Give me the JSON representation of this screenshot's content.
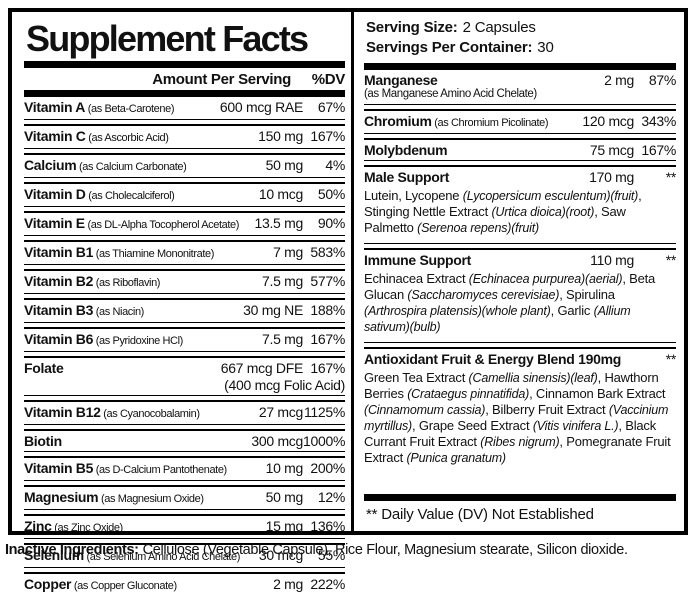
{
  "title": "Supplement Facts",
  "colors": {
    "ink": "#000000",
    "background": "#ffffff"
  },
  "serving": {
    "size_label": "Serving Size:",
    "size_value": "2 Capsules",
    "container_label": "Servings Per Container:",
    "container_value": "30"
  },
  "left_column": {
    "amount_header": "Amount Per Serving",
    "dv_header": "%DV",
    "rows": [
      {
        "name": "Vitamin A",
        "form": "(as Beta-Carotene)",
        "amount": "600 mcg RAE",
        "dv": "67%"
      },
      {
        "name": "Vitamin C",
        "form": "(as Ascorbic Acid)",
        "amount": "150 mg",
        "dv": "167%"
      },
      {
        "name": "Calcium",
        "form": "(as Calcium Carbonate)",
        "amount": "50 mg",
        "dv": "4%"
      },
      {
        "name": "Vitamin D",
        "form": "(as Cholecalciferol)",
        "amount": "10 mcg",
        "dv": "50%"
      },
      {
        "name": "Vitamin E",
        "form": "(as DL-Alpha Tocopherol Acetate)",
        "amount": "13.5 mg",
        "dv": "90%"
      },
      {
        "name": "Vitamin B1",
        "form": "(as Thiamine Mononitrate)",
        "amount": "7 mg",
        "dv": "583%"
      },
      {
        "name": "Vitamin B2",
        "form": "(as Riboflavin)",
        "amount": "7.5 mg",
        "dv": "577%"
      },
      {
        "name": "Vitamin B3",
        "form": "(as Niacin)",
        "amount": "30 mg NE",
        "dv": "188%"
      },
      {
        "name": "Vitamin B6",
        "form": "(as Pyridoxine HCl)",
        "amount": "7.5 mg",
        "dv": "167%"
      },
      {
        "name": "Folate",
        "form": "",
        "amount": "667 mcg DFE",
        "dv": "167%",
        "amount2": "(400 mcg Folic Acid)"
      },
      {
        "name": "Vitamin B12",
        "form": "(as Cyanocobalamin)",
        "amount": "27 mcg",
        "dv": "1125%"
      },
      {
        "name": "Biotin",
        "form": "",
        "amount": "300 mcg",
        "dv": "1000%"
      },
      {
        "name": "Vitamin B5",
        "form": "(as D-Calcium Pantothenate)",
        "amount": "10 mg",
        "dv": "200%"
      },
      {
        "name": "Magnesium",
        "form": "(as Magnesium Oxide)",
        "amount": "50 mg",
        "dv": "12%"
      },
      {
        "name": "Zinc",
        "form": "(as Zinc Oxide)",
        "amount": "15 mg",
        "dv": "136%"
      },
      {
        "name": "Selenium",
        "form": "(as Selenium Amino Acid Chelate)",
        "amount": "30 mcg",
        "dv": "55%"
      },
      {
        "name": "Copper",
        "form": "(as Copper Gluconate)",
        "amount": "2 mg",
        "dv": "222%"
      }
    ]
  },
  "right_column": {
    "rows": [
      {
        "type": "nutrient",
        "name": "Manganese",
        "form": "(as Manganese Amino Acid Chelate)",
        "form_below": true,
        "amount": "2 mg",
        "dv": "87%"
      },
      {
        "type": "nutrient",
        "name": "Chromium",
        "form": "(as Chromium Picolinate)",
        "amount": "120 mcg",
        "dv": "343%"
      },
      {
        "type": "nutrient",
        "name": "Molybdenum",
        "form": "",
        "amount": "75 mcg",
        "dv": "167%"
      },
      {
        "type": "section",
        "name": "Male Support",
        "amount": "170 mg",
        "dv": "**",
        "description": [
          {
            "text": "Lutein, Lycopene ",
            "italic": false
          },
          {
            "text": "(Lycopersicum esculentum)(fruit)",
            "italic": true
          },
          {
            "text": ", Stinging Nettle Extract ",
            "italic": false
          },
          {
            "text": "(Urtica dioica)(root)",
            "italic": true
          },
          {
            "text": ", Saw Palmetto ",
            "italic": false
          },
          {
            "text": "(Serenoa repens)(fruit)",
            "italic": true
          }
        ]
      },
      {
        "type": "section",
        "name": "Immune Support",
        "amount": "110 mg",
        "dv": "**",
        "description": [
          {
            "text": "Echinacea Extract ",
            "italic": false
          },
          {
            "text": "(Echinacea purpurea)(aerial)",
            "italic": true
          },
          {
            "text": ", Beta Glucan ",
            "italic": false
          },
          {
            "text": "(Saccharomyces cerevisiae)",
            "italic": true
          },
          {
            "text": ", Spirulina ",
            "italic": false
          },
          {
            "text": "(Arthrospira platensis)(whole plant)",
            "italic": true
          },
          {
            "text": ", Garlic ",
            "italic": false
          },
          {
            "text": "(Allium sativum)(bulb)",
            "italic": true
          }
        ]
      },
      {
        "type": "section",
        "name": "Antioxidant Fruit & Energy Blend 190mg",
        "amount": "",
        "dv": "**",
        "description": [
          {
            "text": "Green Tea Extract ",
            "italic": false
          },
          {
            "text": "(Camellia sinensis)(leaf)",
            "italic": true
          },
          {
            "text": ", Hawthorn Berries ",
            "italic": false
          },
          {
            "text": "(Crataegus pinnatifida)",
            "italic": true
          },
          {
            "text": ", Cinnamon Bark Extract ",
            "italic": false
          },
          {
            "text": "(Cinnamomum cassia)",
            "italic": true
          },
          {
            "text": ", Bilberry Fruit Extract ",
            "italic": false
          },
          {
            "text": "(Vaccinium myrtillus)",
            "italic": true
          },
          {
            "text": ", Grape Seed Extract ",
            "italic": false
          },
          {
            "text": "(Vitis vinifera L.)",
            "italic": true
          },
          {
            "text": ", Black Currant Fruit Extract ",
            "italic": false
          },
          {
            "text": "(Ribes nigrum)",
            "italic": true
          },
          {
            "text": ", Pomegranate Fruit Extract ",
            "italic": false
          },
          {
            "text": "(Punica granatum)",
            "italic": true
          }
        ]
      }
    ],
    "footnote": "** Daily Value (DV) Not Established"
  },
  "footer": {
    "label": "Inactive Ingredients:",
    "text": "Cellulose (Vegetable Capsule), Rice Flour, Magnesium stearate, Silicon dioxide."
  }
}
